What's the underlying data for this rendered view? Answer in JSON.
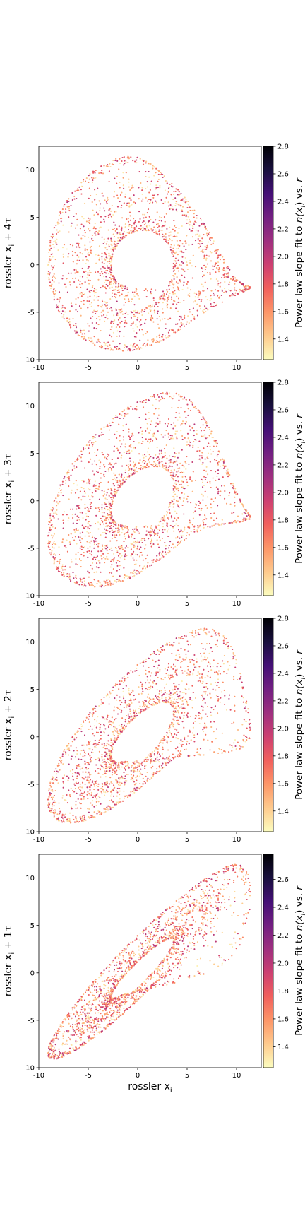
{
  "chart_data": [
    {
      "type": "scatter",
      "ylabel": "rossler x$_i$ + 4τ",
      "ylabel_main": "rossler x",
      "ylabel_sub": "i",
      "ylabel_tail": " + 4τ",
      "xlabel": "",
      "xlim": [
        -10,
        12.5
      ],
      "ylim": [
        -10,
        12.5
      ],
      "xticks": [
        "-10",
        "-5",
        "0",
        "5",
        "10"
      ],
      "yticks": [
        "-10",
        "-5",
        "0",
        "5",
        "10"
      ],
      "colorbar": {
        "range": [
          1.25,
          2.8
        ],
        "ticks": [
          "1.4",
          "1.6",
          "1.8",
          "2.0",
          "2.2",
          "2.4",
          "2.6",
          "2.8"
        ],
        "label_pre": "Power law slope fit to ",
        "label_fn": "n(x",
        "label_sub": "i",
        "label_post": ") vs. ",
        "label_r": "r"
      },
      "attractor": {
        "lag_steps": 4,
        "points": 1800
      }
    },
    {
      "type": "scatter",
      "ylabel": "rossler x$_i$ + 3τ",
      "ylabel_main": "rossler x",
      "ylabel_sub": "i",
      "ylabel_tail": " + 3τ",
      "xlabel": "",
      "xlim": [
        -10,
        12.5
      ],
      "ylim": [
        -10,
        12.5
      ],
      "xticks": [
        "-10",
        "-5",
        "0",
        "5",
        "10"
      ],
      "yticks": [
        "-10",
        "-5",
        "0",
        "5",
        "10"
      ],
      "colorbar": {
        "range": [
          1.25,
          2.8
        ],
        "ticks": [
          "1.4",
          "1.6",
          "1.8",
          "2.0",
          "2.2",
          "2.4",
          "2.6",
          "2.8"
        ],
        "label_pre": "Power law slope fit to ",
        "label_fn": "n(x",
        "label_sub": "i",
        "label_post": ") vs. ",
        "label_r": "r"
      },
      "attractor": {
        "lag_steps": 3,
        "points": 1800
      }
    },
    {
      "type": "scatter",
      "ylabel": "rossler x$_i$ + 2τ",
      "ylabel_main": "rossler x",
      "ylabel_sub": "i",
      "ylabel_tail": " + 2τ",
      "xlabel": "",
      "xlim": [
        -10,
        12.5
      ],
      "ylim": [
        -10,
        12.5
      ],
      "xticks": [
        "-10",
        "-5",
        "0",
        "5",
        "10"
      ],
      "yticks": [
        "-10",
        "-5",
        "0",
        "5",
        "10"
      ],
      "colorbar": {
        "range": [
          1.25,
          2.8
        ],
        "ticks": [
          "1.4",
          "1.6",
          "1.8",
          "2.0",
          "2.2",
          "2.4",
          "2.6",
          "2.8"
        ],
        "label_pre": "Power law slope fit to ",
        "label_fn": "n(x",
        "label_sub": "i",
        "label_post": ") vs. ",
        "label_r": "r"
      },
      "attractor": {
        "lag_steps": 2,
        "points": 1800
      }
    },
    {
      "type": "scatter",
      "ylabel": "rossler x$_i$ + 1τ",
      "ylabel_main": "rossler x",
      "ylabel_sub": "i",
      "ylabel_tail": " + 1τ",
      "xlabel": "rossler x$_i$",
      "xlabel_main": "rossler x",
      "xlabel_sub": "i",
      "xlim": [
        -10,
        12.5
      ],
      "ylim": [
        -10,
        12.5
      ],
      "xticks": [
        "-10",
        "-5",
        "0",
        "5",
        "10"
      ],
      "yticks": [
        "-10",
        "-5",
        "0",
        "5",
        "10"
      ],
      "colorbar": {
        "range": [
          1.25,
          2.78
        ],
        "ticks": [
          "1.4",
          "1.6",
          "1.8",
          "2.0",
          "2.2",
          "2.4",
          "2.6"
        ],
        "label_pre": "Power law slope fit to ",
        "label_fn": "n(x",
        "label_sub": "i",
        "label_post": ") vs. ",
        "label_r": "r"
      },
      "attractor": {
        "lag_steps": 1,
        "points": 1800
      }
    }
  ],
  "colormap": {
    "name": "magma_r",
    "stops": [
      "#fcfdbf",
      "#feca8d",
      "#fd9668",
      "#f1605d",
      "#cd4071",
      "#9e2f7f",
      "#721f81",
      "#440f76",
      "#180f3d",
      "#000004"
    ]
  }
}
